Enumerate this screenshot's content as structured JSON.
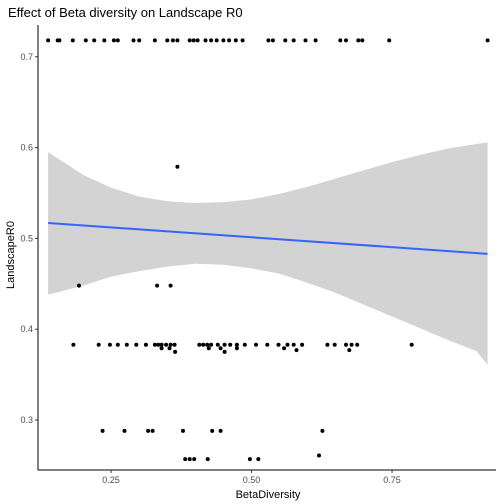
{
  "chart_data": {
    "type": "scatter",
    "title": "Effect of Beta diversity on Landscape R0",
    "xlabel": "BetaDiversity",
    "ylabel": "LandscapeR0",
    "xlim": [
      0.12,
      0.935
    ],
    "ylim": [
      0.245,
      0.735
    ],
    "x_ticks": [
      0.25,
      0.5,
      0.75
    ],
    "x_tick_labels": [
      "0.25",
      "0.50",
      "0.75"
    ],
    "y_ticks": [
      0.3,
      0.4,
      0.5,
      0.6,
      0.7
    ],
    "y_tick_labels": [
      "0.3",
      "0.4",
      "0.5",
      "0.6",
      "0.7"
    ],
    "grid": false,
    "colors": {
      "points": "#000000",
      "fit_line": "#3366ff",
      "ribbon": "#d3d3d3"
    },
    "points": [
      {
        "x": 0.138,
        "y": 0.718
      },
      {
        "x": 0.155,
        "y": 0.718
      },
      {
        "x": 0.158,
        "y": 0.718
      },
      {
        "x": 0.182,
        "y": 0.718
      },
      {
        "x": 0.205,
        "y": 0.718
      },
      {
        "x": 0.22,
        "y": 0.718
      },
      {
        "x": 0.238,
        "y": 0.718
      },
      {
        "x": 0.255,
        "y": 0.718
      },
      {
        "x": 0.262,
        "y": 0.718
      },
      {
        "x": 0.29,
        "y": 0.718
      },
      {
        "x": 0.3,
        "y": 0.718
      },
      {
        "x": 0.328,
        "y": 0.718
      },
      {
        "x": 0.35,
        "y": 0.718
      },
      {
        "x": 0.36,
        "y": 0.718
      },
      {
        "x": 0.368,
        "y": 0.718
      },
      {
        "x": 0.39,
        "y": 0.718
      },
      {
        "x": 0.397,
        "y": 0.718
      },
      {
        "x": 0.404,
        "y": 0.718
      },
      {
        "x": 0.418,
        "y": 0.718
      },
      {
        "x": 0.428,
        "y": 0.718
      },
      {
        "x": 0.438,
        "y": 0.718
      },
      {
        "x": 0.45,
        "y": 0.718
      },
      {
        "x": 0.46,
        "y": 0.718
      },
      {
        "x": 0.472,
        "y": 0.718
      },
      {
        "x": 0.484,
        "y": 0.718
      },
      {
        "x": 0.53,
        "y": 0.718
      },
      {
        "x": 0.538,
        "y": 0.718
      },
      {
        "x": 0.56,
        "y": 0.718
      },
      {
        "x": 0.575,
        "y": 0.718
      },
      {
        "x": 0.596,
        "y": 0.718
      },
      {
        "x": 0.614,
        "y": 0.718
      },
      {
        "x": 0.658,
        "y": 0.718
      },
      {
        "x": 0.668,
        "y": 0.718
      },
      {
        "x": 0.69,
        "y": 0.718
      },
      {
        "x": 0.697,
        "y": 0.718
      },
      {
        "x": 0.745,
        "y": 0.718
      },
      {
        "x": 0.92,
        "y": 0.718
      },
      {
        "x": 0.368,
        "y": 0.579
      },
      {
        "x": 0.193,
        "y": 0.448
      },
      {
        "x": 0.332,
        "y": 0.448
      },
      {
        "x": 0.356,
        "y": 0.448
      },
      {
        "x": 0.183,
        "y": 0.383
      },
      {
        "x": 0.228,
        "y": 0.383
      },
      {
        "x": 0.248,
        "y": 0.383
      },
      {
        "x": 0.262,
        "y": 0.383
      },
      {
        "x": 0.278,
        "y": 0.383
      },
      {
        "x": 0.295,
        "y": 0.383
      },
      {
        "x": 0.312,
        "y": 0.383
      },
      {
        "x": 0.328,
        "y": 0.383
      },
      {
        "x": 0.334,
        "y": 0.383
      },
      {
        "x": 0.34,
        "y": 0.383
      },
      {
        "x": 0.348,
        "y": 0.383
      },
      {
        "x": 0.356,
        "y": 0.383
      },
      {
        "x": 0.363,
        "y": 0.383
      },
      {
        "x": 0.407,
        "y": 0.383
      },
      {
        "x": 0.414,
        "y": 0.383
      },
      {
        "x": 0.421,
        "y": 0.383
      },
      {
        "x": 0.428,
        "y": 0.383
      },
      {
        "x": 0.44,
        "y": 0.383
      },
      {
        "x": 0.452,
        "y": 0.383
      },
      {
        "x": 0.462,
        "y": 0.383
      },
      {
        "x": 0.474,
        "y": 0.383
      },
      {
        "x": 0.488,
        "y": 0.383
      },
      {
        "x": 0.508,
        "y": 0.383
      },
      {
        "x": 0.528,
        "y": 0.383
      },
      {
        "x": 0.548,
        "y": 0.383
      },
      {
        "x": 0.564,
        "y": 0.383
      },
      {
        "x": 0.575,
        "y": 0.383
      },
      {
        "x": 0.59,
        "y": 0.383
      },
      {
        "x": 0.635,
        "y": 0.383
      },
      {
        "x": 0.648,
        "y": 0.383
      },
      {
        "x": 0.668,
        "y": 0.383
      },
      {
        "x": 0.678,
        "y": 0.383
      },
      {
        "x": 0.688,
        "y": 0.383
      },
      {
        "x": 0.785,
        "y": 0.383
      },
      {
        "x": 0.34,
        "y": 0.379
      },
      {
        "x": 0.354,
        "y": 0.379
      },
      {
        "x": 0.364,
        "y": 0.375
      },
      {
        "x": 0.424,
        "y": 0.379
      },
      {
        "x": 0.445,
        "y": 0.379
      },
      {
        "x": 0.452,
        "y": 0.375
      },
      {
        "x": 0.474,
        "y": 0.379
      },
      {
        "x": 0.558,
        "y": 0.379
      },
      {
        "x": 0.58,
        "y": 0.377
      },
      {
        "x": 0.674,
        "y": 0.377
      },
      {
        "x": 0.235,
        "y": 0.288
      },
      {
        "x": 0.274,
        "y": 0.288
      },
      {
        "x": 0.316,
        "y": 0.288
      },
      {
        "x": 0.324,
        "y": 0.288
      },
      {
        "x": 0.378,
        "y": 0.288
      },
      {
        "x": 0.43,
        "y": 0.288
      },
      {
        "x": 0.445,
        "y": 0.288
      },
      {
        "x": 0.626,
        "y": 0.288
      },
      {
        "x": 0.62,
        "y": 0.261
      },
      {
        "x": 0.382,
        "y": 0.257
      },
      {
        "x": 0.39,
        "y": 0.257
      },
      {
        "x": 0.398,
        "y": 0.257
      },
      {
        "x": 0.422,
        "y": 0.257
      },
      {
        "x": 0.497,
        "y": 0.257
      },
      {
        "x": 0.512,
        "y": 0.257
      }
    ],
    "fit_line": {
      "x": [
        0.138,
        0.92
      ],
      "y": [
        0.517,
        0.483
      ]
    },
    "confidence_band": {
      "x": [
        0.138,
        0.2,
        0.25,
        0.3,
        0.35,
        0.4,
        0.45,
        0.5,
        0.55,
        0.6,
        0.65,
        0.7,
        0.75,
        0.8,
        0.85,
        0.9,
        0.92
      ],
      "upper": [
        0.595,
        0.57,
        0.556,
        0.546,
        0.541,
        0.539,
        0.54,
        0.543,
        0.549,
        0.557,
        0.566,
        0.575,
        0.584,
        0.592,
        0.599,
        0.604,
        0.606
      ],
      "lower": [
        0.438,
        0.448,
        0.458,
        0.464,
        0.469,
        0.472,
        0.471,
        0.467,
        0.461,
        0.451,
        0.44,
        0.427,
        0.414,
        0.401,
        0.388,
        0.376,
        0.361
      ]
    }
  }
}
